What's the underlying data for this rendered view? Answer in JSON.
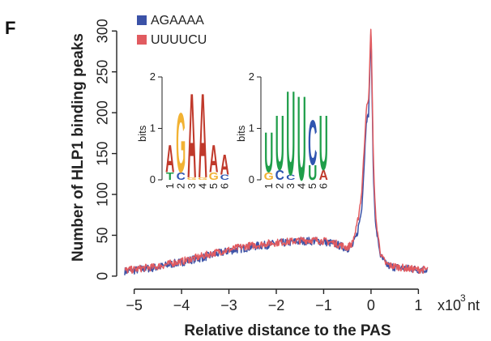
{
  "panel_label": "F",
  "colors": {
    "agaaaa": "#3b52a7",
    "uuuucu": "#e15b60",
    "logo_a": "#c0392b",
    "logo_c": "#2f55b0",
    "logo_g": "#f2b233",
    "logo_u": "#1f9e4a",
    "logo_t": "#1f9e4a"
  },
  "chart_data": {
    "type": "line",
    "title": "",
    "xlabel": "Relative distance to the PAS",
    "ylabel": "Number of HLP1 binding peaks",
    "x_unit_label": "x10",
    "x_unit_exp": "3",
    "x_unit_suffix": "nt",
    "xlim": [
      -5.25,
      1.25
    ],
    "ylim": [
      -10,
      330
    ],
    "xticks": [
      -5,
      -4,
      -3,
      -2,
      -1,
      0,
      1
    ],
    "xtick_labels": [
      "−5",
      "−4",
      "−3",
      "−2",
      "−1",
      "0",
      "1"
    ],
    "yticks": [
      0,
      50,
      100,
      150,
      200,
      250,
      300
    ],
    "ytick_labels": [
      "0",
      "50",
      "100",
      "150",
      "200",
      "250",
      "300"
    ],
    "legend_position": "top-left",
    "grid": false,
    "series": [
      {
        "name": "AGAAAA",
        "color": "#3b52a7",
        "points": [
          [
            -5.2,
            6
          ],
          [
            -5.0,
            7
          ],
          [
            -4.8,
            9
          ],
          [
            -4.6,
            10
          ],
          [
            -4.4,
            12
          ],
          [
            -4.2,
            15
          ],
          [
            -4.0,
            17
          ],
          [
            -3.8,
            20
          ],
          [
            -3.6,
            22
          ],
          [
            -3.4,
            25
          ],
          [
            -3.2,
            28
          ],
          [
            -3.0,
            31
          ],
          [
            -2.8,
            33
          ],
          [
            -2.6,
            35
          ],
          [
            -2.4,
            37
          ],
          [
            -2.2,
            38
          ],
          [
            -2.0,
            40
          ],
          [
            -1.8,
            41
          ],
          [
            -1.6,
            42
          ],
          [
            -1.4,
            43
          ],
          [
            -1.2,
            43
          ],
          [
            -1.0,
            42
          ],
          [
            -0.8,
            40
          ],
          [
            -0.6,
            36
          ],
          [
            -0.5,
            34
          ],
          [
            -0.4,
            36
          ],
          [
            -0.3,
            50
          ],
          [
            -0.2,
            80
          ],
          [
            -0.15,
            130
          ],
          [
            -0.1,
            190
          ],
          [
            -0.05,
            198
          ],
          [
            0.0,
            302
          ],
          [
            0.05,
            120
          ],
          [
            0.1,
            60
          ],
          [
            0.2,
            25
          ],
          [
            0.3,
            15
          ],
          [
            0.4,
            12
          ],
          [
            0.6,
            10
          ],
          [
            0.8,
            9
          ],
          [
            1.0,
            8
          ],
          [
            1.2,
            8
          ]
        ]
      },
      {
        "name": "UUUUCU",
        "color": "#e15b60",
        "points": [
          [
            -5.2,
            7
          ],
          [
            -5.0,
            8
          ],
          [
            -4.8,
            10
          ],
          [
            -4.6,
            11
          ],
          [
            -4.4,
            13
          ],
          [
            -4.2,
            16
          ],
          [
            -4.0,
            18
          ],
          [
            -3.8,
            21
          ],
          [
            -3.6,
            24
          ],
          [
            -3.4,
            27
          ],
          [
            -3.2,
            30
          ],
          [
            -3.0,
            32
          ],
          [
            -2.8,
            35
          ],
          [
            -2.6,
            37
          ],
          [
            -2.4,
            38
          ],
          [
            -2.2,
            40
          ],
          [
            -2.0,
            41
          ],
          [
            -1.8,
            42
          ],
          [
            -1.6,
            43
          ],
          [
            -1.4,
            44
          ],
          [
            -1.2,
            44
          ],
          [
            -1.0,
            43
          ],
          [
            -0.8,
            41
          ],
          [
            -0.6,
            37
          ],
          [
            -0.5,
            35
          ],
          [
            -0.4,
            40
          ],
          [
            -0.3,
            60
          ],
          [
            -0.2,
            100
          ],
          [
            -0.15,
            150
          ],
          [
            -0.1,
            205
          ],
          [
            -0.05,
            215
          ],
          [
            0.0,
            312
          ],
          [
            0.05,
            140
          ],
          [
            0.1,
            70
          ],
          [
            0.2,
            28
          ],
          [
            0.3,
            16
          ],
          [
            0.4,
            13
          ],
          [
            0.6,
            11
          ],
          [
            0.8,
            9
          ],
          [
            1.0,
            8
          ],
          [
            1.2,
            8
          ]
        ]
      }
    ],
    "sequence_logos": [
      {
        "name": "AGAAAA",
        "axis_label": "bits",
        "yticks": [
          "0",
          "1",
          "2"
        ],
        "positions": [
          "1",
          "2",
          "3",
          "4",
          "5",
          "6"
        ],
        "stacks": [
          [
            {
              "letter": "T",
              "bits": 0.15
            },
            {
              "letter": "A",
              "bits": 0.55
            }
          ],
          [
            {
              "letter": "C",
              "bits": 0.15
            },
            {
              "letter": "G",
              "bits": 1.2
            }
          ],
          [
            {
              "letter": "G",
              "bits": 0.05
            },
            {
              "letter": "A",
              "bits": 1.7
            }
          ],
          [
            {
              "letter": "G",
              "bits": 0.05
            },
            {
              "letter": "A",
              "bits": 1.7
            }
          ],
          [
            {
              "letter": "G",
              "bits": 0.15
            },
            {
              "letter": "A",
              "bits": 0.55
            }
          ],
          [
            {
              "letter": "C",
              "bits": 0.1
            },
            {
              "letter": "A",
              "bits": 0.4
            }
          ]
        ]
      },
      {
        "name": "UUUUCU",
        "axis_label": "bits",
        "yticks": [
          "0",
          "1",
          "2"
        ],
        "positions": [
          "1",
          "2",
          "3",
          "4",
          "5",
          "6"
        ],
        "stacks": [
          [
            {
              "letter": "G",
              "bits": 0.15
            },
            {
              "letter": "U",
              "bits": 0.8
            }
          ],
          [
            {
              "letter": "C",
              "bits": 0.2
            },
            {
              "letter": "U",
              "bits": 1.1
            }
          ],
          [
            {
              "letter": "C",
              "bits": 0.1
            },
            {
              "letter": "U",
              "bits": 1.7
            }
          ],
          [
            {
              "letter": "U",
              "bits": 1.7
            }
          ],
          [
            {
              "letter": "U",
              "bits": 0.3
            },
            {
              "letter": "C",
              "bits": 0.9
            }
          ],
          [
            {
              "letter": "A",
              "bits": 0.2
            },
            {
              "letter": "U",
              "bits": 1.1
            }
          ]
        ]
      }
    ]
  }
}
